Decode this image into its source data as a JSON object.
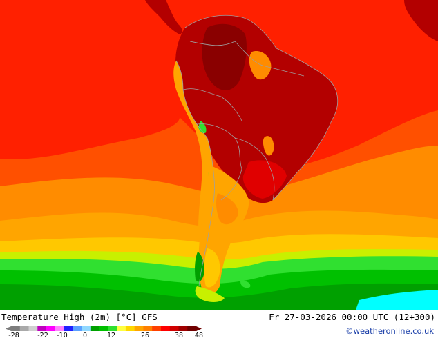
{
  "header": {
    "title": "Temperature High (2m) [°C] GFS",
    "datetime": "Fr 27-03-2026 00:00 UTC (12+300)",
    "credit": "©weatheronline.co.uk"
  },
  "legend": {
    "ticks": [
      "-28",
      "-22",
      "-10",
      "0",
      "12",
      "26",
      "38",
      "48"
    ],
    "colors": [
      "#7d7d7d",
      "#a9a9a9",
      "#d0d0d0",
      "#c000c0",
      "#ff00ff",
      "#ff80ff",
      "#2020ff",
      "#5aa0ff",
      "#90d8ff",
      "#00a000",
      "#00c000",
      "#30e030",
      "#ffff40",
      "#ffd700",
      "#ffa500",
      "#ff8000",
      "#ff4000",
      "#ff0000",
      "#d00000",
      "#a00000",
      "#700000"
    ]
  },
  "map_colors": {
    "dark_red": "#b30000",
    "red": "#ff2000",
    "orange_red": "#ff5000",
    "orange": "#ff8c00",
    "light_orange": "#ffa500",
    "yellow": "#ffc800",
    "green_yellow": "#c8f000",
    "light_green": "#30e030",
    "green": "#00c000",
    "dark_green": "#00a000",
    "cyan": "#00ffff",
    "border": "#a0a0a0"
  }
}
